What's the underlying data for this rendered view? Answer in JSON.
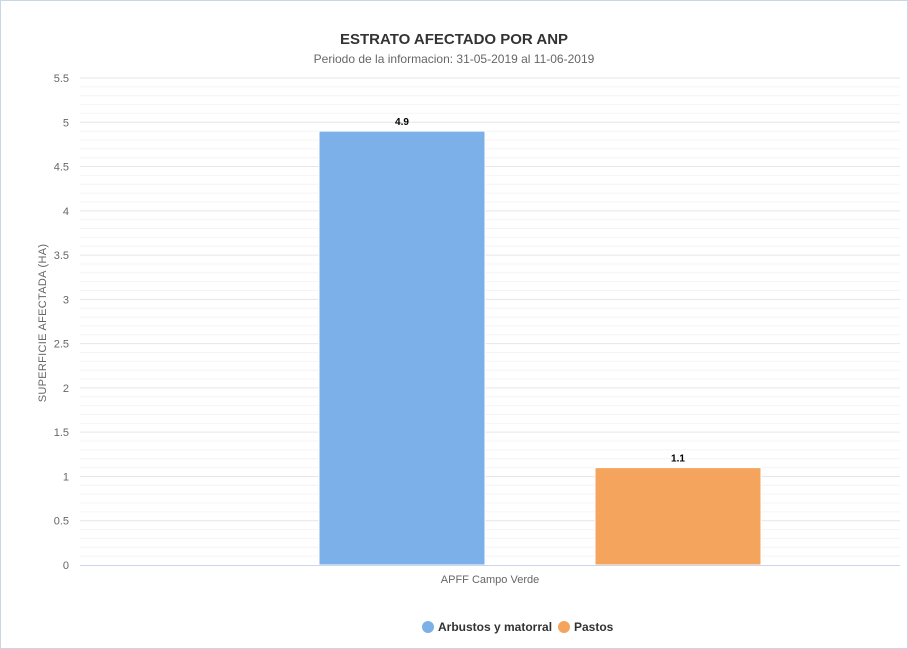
{
  "chart_data": {
    "type": "bar",
    "title": "ESTRATO AFECTADO POR ANP",
    "subtitle": "Periodo de la informacion: 31-05-2019 al 11-06-2019",
    "ylabel": "SUPERFICIE AFECTADA (HA)",
    "xlabel": "",
    "categories": [
      "APFF Campo Verde"
    ],
    "ylim": [
      0,
      5.5
    ],
    "yticks": [
      "0",
      "0.5",
      "1",
      "1.5",
      "2",
      "2.5",
      "3",
      "3.5",
      "4",
      "4.5",
      "5",
      "5.5"
    ],
    "grid": true,
    "legend_position": "bottom",
    "series": [
      {
        "name": "Arbustos y matorral",
        "values": [
          4.9
        ],
        "data_labels": [
          "4.9"
        ],
        "color": "#7cb0e8"
      },
      {
        "name": "Pastos",
        "values": [
          1.1
        ],
        "data_labels": [
          "1.1"
        ],
        "color": "#f5a45d"
      }
    ]
  }
}
